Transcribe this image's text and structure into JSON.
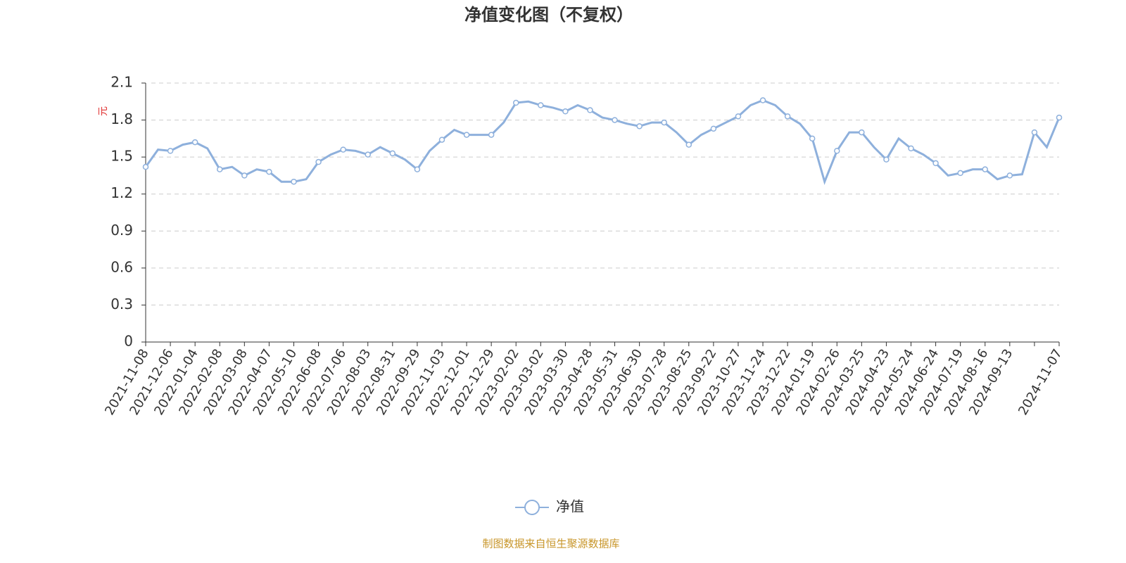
{
  "chart_data": {
    "type": "line",
    "title": "净值变化图（不复权）",
    "y_label": "元",
    "source": "制图数据来自恒生聚源数据库",
    "categories": [
      "2021-11-08",
      null,
      "2021-12-06",
      null,
      "2022-01-04",
      null,
      "2022-02-08",
      null,
      "2022-03-08",
      null,
      "2022-04-07",
      null,
      "2022-05-10",
      null,
      "2022-06-08",
      null,
      "2022-07-06",
      null,
      "2022-08-03",
      null,
      "2022-08-31",
      null,
      "2022-09-29",
      null,
      "2022-11-03",
      null,
      "2022-12-01",
      null,
      "2022-12-29",
      null,
      "2023-02-02",
      null,
      "2023-03-02",
      null,
      "2023-03-30",
      null,
      "2023-04-28",
      null,
      "2023-05-31",
      null,
      "2023-06-30",
      null,
      "2023-07-28",
      null,
      "2023-08-25",
      null,
      "2023-09-22",
      null,
      "2023-10-27",
      null,
      "2023-11-24",
      null,
      "2023-12-22",
      null,
      "2024-01-19",
      null,
      "2024-02-26",
      null,
      "2024-03-25",
      null,
      "2024-04-23",
      null,
      "2024-05-24",
      null,
      "2024-06-24",
      null,
      "2024-07-19",
      null,
      "2024-08-16",
      null,
      "2024-09-13",
      null,
      null,
      null,
      "2024-11-07"
    ],
    "series": [
      {
        "name": "净值",
        "color": "#8eb0dc",
        "values": [
          1.42,
          1.56,
          1.55,
          1.6,
          1.62,
          1.57,
          1.4,
          1.42,
          1.35,
          1.4,
          1.38,
          1.3,
          1.3,
          1.32,
          1.46,
          1.52,
          1.56,
          1.55,
          1.52,
          1.58,
          1.53,
          1.48,
          1.4,
          1.55,
          1.64,
          1.72,
          1.68,
          1.68,
          1.68,
          1.78,
          1.94,
          1.95,
          1.92,
          1.9,
          1.87,
          1.92,
          1.88,
          1.82,
          1.8,
          1.77,
          1.75,
          1.78,
          1.78,
          1.7,
          1.6,
          1.68,
          1.73,
          1.78,
          1.83,
          1.92,
          1.96,
          1.92,
          1.83,
          1.77,
          1.65,
          1.3,
          1.55,
          1.7,
          1.7,
          1.58,
          1.48,
          1.65,
          1.57,
          1.52,
          1.45,
          1.35,
          1.37,
          1.4,
          1.4,
          1.32,
          1.35,
          1.36,
          1.7,
          1.58,
          1.82
        ]
      }
    ],
    "ylim": [
      0,
      2.1
    ],
    "yticks": [
      0,
      0.3,
      0.6,
      0.9,
      1.2,
      1.5,
      1.8,
      2.1
    ],
    "grid": true
  }
}
